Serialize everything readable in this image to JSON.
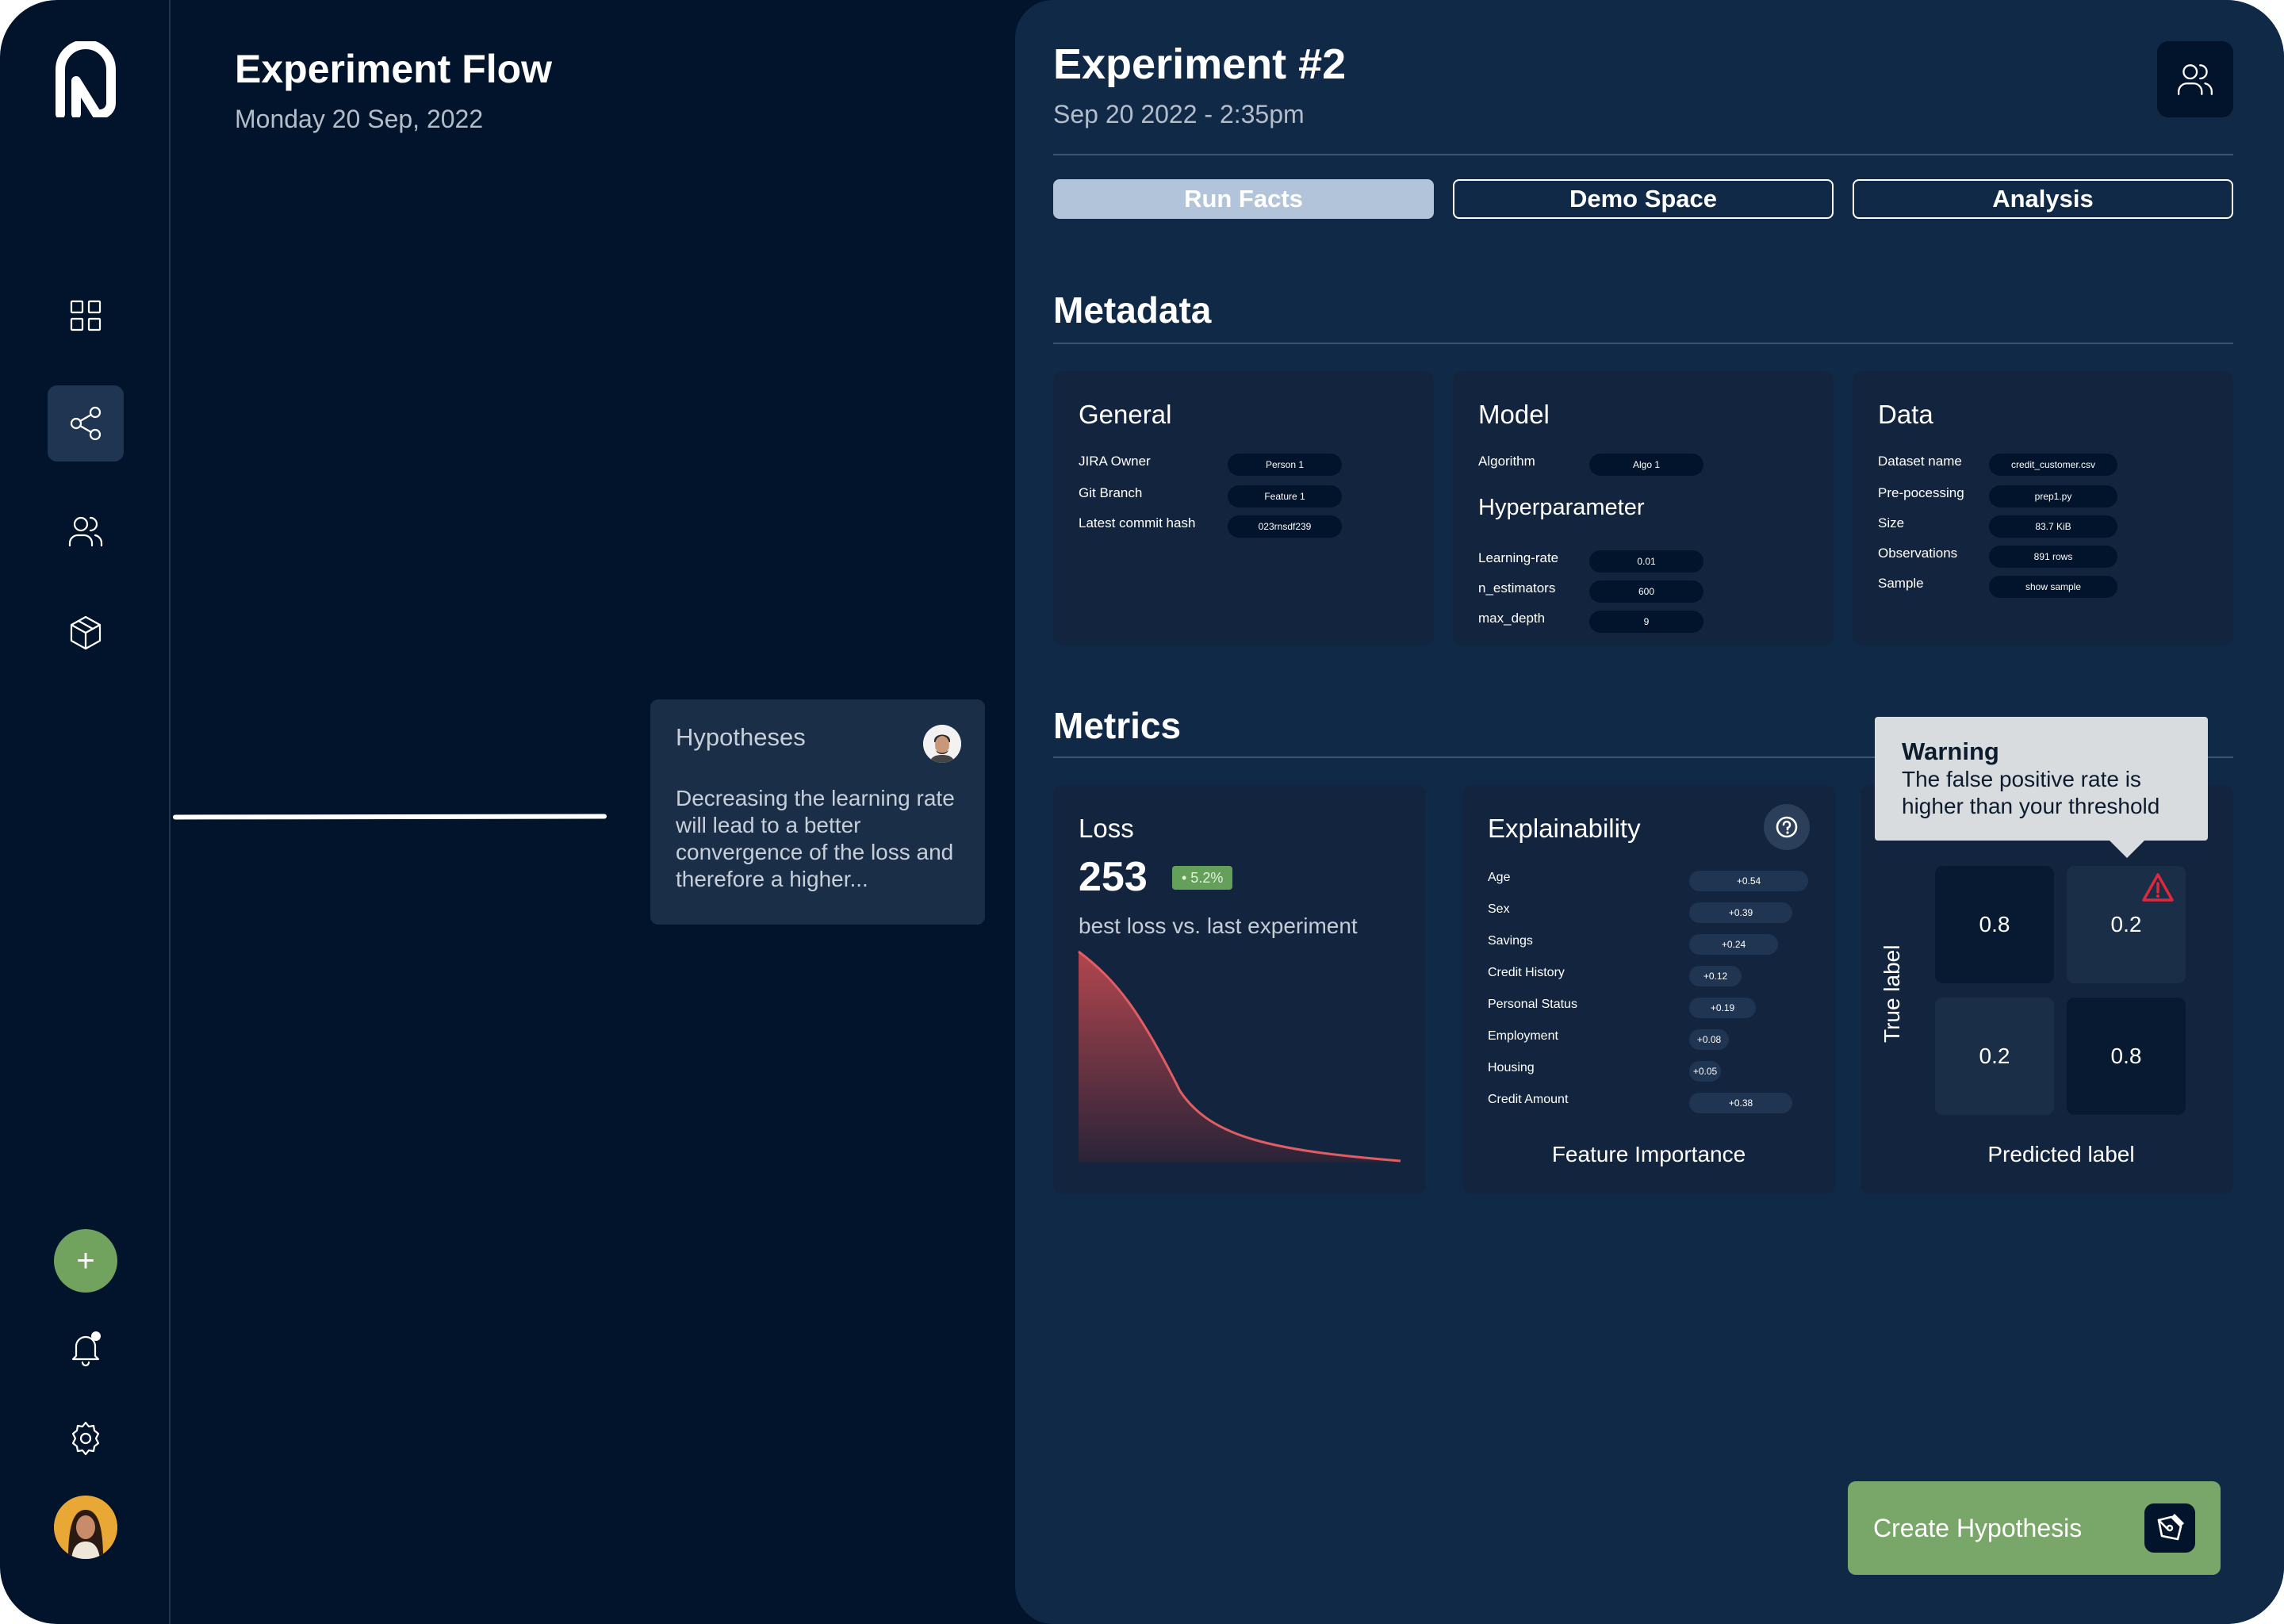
{
  "flow": {
    "title": "Experiment Flow",
    "date": "Monday 20 Sep, 2022"
  },
  "hypothesis": {
    "title": "Hypotheses",
    "text": "Decreasing the learning rate will lead to a better convergence of the loss and therefore a higher..."
  },
  "experiment": {
    "title": "Experiment #2",
    "date": "Sep 20 2022 - 2:35pm"
  },
  "tabs": [
    {
      "label": "Run Facts",
      "active": true
    },
    {
      "label": "Demo Space",
      "active": false
    },
    {
      "label": "Analysis",
      "active": false
    }
  ],
  "metadata": {
    "title": "Metadata",
    "general": {
      "title": "General",
      "rows": [
        {
          "key": "JIRA Owner",
          "value": "Person 1"
        },
        {
          "key": "Git Branch",
          "value": "Feature 1"
        },
        {
          "key": "Latest commit hash",
          "value": "023rnsdf239"
        }
      ]
    },
    "model": {
      "title": "Model",
      "rows": [
        {
          "key": "Algorithm",
          "value": "Algo 1"
        }
      ],
      "hyper_title": "Hyperparameter",
      "hyper_rows": [
        {
          "key": "Learning-rate",
          "value": "0.01"
        },
        {
          "key": "n_estimators",
          "value": "600"
        },
        {
          "key": "max_depth",
          "value": "9"
        }
      ]
    },
    "data": {
      "title": "Data",
      "rows": [
        {
          "key": "Dataset name",
          "value": "credit_customer.csv"
        },
        {
          "key": "Pre-pocessing",
          "value": "prep1.py"
        },
        {
          "key": "Size",
          "value": "83.7 KiB"
        },
        {
          "key": "Observations",
          "value": "891 rows"
        },
        {
          "key": "Sample",
          "value": "show sample"
        }
      ]
    }
  },
  "metrics": {
    "title": "Metrics",
    "loss": {
      "title": "Loss",
      "value": "253",
      "badge": "• 5.2%",
      "subtitle": "best loss vs. last experiment"
    },
    "explainability": {
      "title": "Explainability",
      "footer": "Feature Importance",
      "features": [
        {
          "name": "Age",
          "value": "+0.54"
        },
        {
          "name": "Sex",
          "value": "+0.39"
        },
        {
          "name": "Savings",
          "value": "+0.24"
        },
        {
          "name": "Credit History",
          "value": "+0.12"
        },
        {
          "name": "Personal Status",
          "value": "+0.19"
        },
        {
          "name": "Employment",
          "value": "+0.08"
        },
        {
          "name": "Housing",
          "value": "+0.05"
        },
        {
          "name": "Credit Amount",
          "value": "+0.38"
        }
      ]
    },
    "confusion": {
      "y_label": "True label",
      "x_label": "Predicted label",
      "cells": [
        "0.8",
        "0.2",
        "0.2",
        "0.8"
      ]
    }
  },
  "warning": {
    "title": "Warning",
    "text": "The false positive rate is higher than your threshold"
  },
  "create_button": {
    "label": "Create Hypothesis"
  },
  "colors": {
    "background": "#01142b",
    "panel": "#102947",
    "card": "#13253e",
    "accent_green": "#79a769",
    "loss_red": "#d2525a"
  },
  "icons": [
    "logo-icon",
    "dashboard-icon",
    "share-flow-icon",
    "team-icon",
    "package-icon",
    "plus-icon",
    "bell-icon",
    "gear-icon",
    "help-icon",
    "warning-icon",
    "pen-icon"
  ]
}
